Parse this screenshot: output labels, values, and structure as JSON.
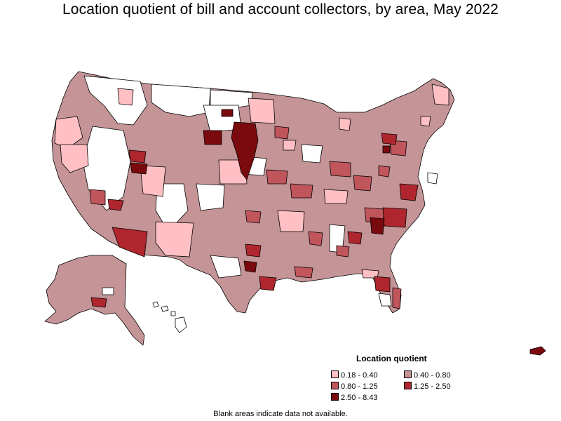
{
  "title": "Location quotient of bill and account collectors, by area, May 2022",
  "legend": {
    "title": "Location quotient",
    "items": [
      {
        "label": "0.18 - 0.40",
        "color": "#ffbfc3"
      },
      {
        "label": "0.40 - 0.80",
        "color": "#c49497"
      },
      {
        "label": "0.80 - 1.25",
        "color": "#c0555c"
      },
      {
        "label": "1.25 - 2.50",
        "color": "#b0262e"
      },
      {
        "label": "2.50 - 8.43",
        "color": "#7a0a0e"
      }
    ]
  },
  "footnote": "Blank areas indicate data not available.",
  "colors": {
    "border": "#000000",
    "no_data": "#ffffff"
  }
}
